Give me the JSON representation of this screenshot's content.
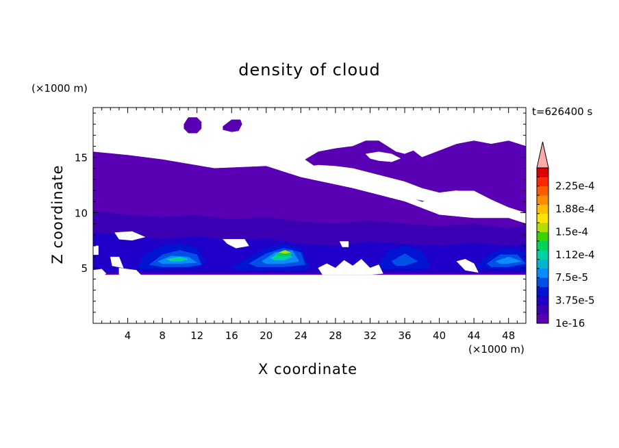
{
  "chart_data": {
    "type": "heatmap",
    "title": "density of cloud",
    "xlabel": "X coordinate",
    "ylabel": "Z coordinate",
    "x_multiplier": "(×1000 m)",
    "y_multiplier": "(×1000 m)",
    "time_label": "t=626400 s",
    "xlim": [
      0,
      50
    ],
    "ylim": [
      0,
      19.5
    ],
    "x_ticks": [
      4,
      8,
      12,
      16,
      20,
      24,
      28,
      32,
      36,
      40,
      44,
      48
    ],
    "y_ticks": [
      5,
      10,
      15
    ],
    "colorbar": {
      "labels": [
        "1e-16",
        "3.75e-5",
        "7.5e-5",
        "1.12e-4",
        "1.5e-4",
        "1.88e-4",
        "2.25e-4"
      ],
      "colors": [
        "#5a00b4",
        "#3c00b4",
        "#1e00c8",
        "#0014d2",
        "#0050e6",
        "#0a8cff",
        "#00b4d2",
        "#00d2a0",
        "#00d25a",
        "#3cd200",
        "#b4dc00",
        "#ffe600",
        "#ffbe00",
        "#ff8c00",
        "#ff5a00",
        "#ff2800",
        "#dc0000"
      ],
      "overflow_color": "#ffaaaa"
    },
    "layers": [
      {
        "level": "1e-16",
        "color": "#5a00b4",
        "regions": [
          {
            "x": [
              0,
              4,
              8,
              14,
              20,
              24,
              30,
              36,
              40,
              44,
              44,
              48,
              50,
              50,
              48,
              44,
              40,
              36,
              32,
              28,
              24,
              20,
              16,
              12,
              8,
              4,
              0
            ],
            "z": [
              15.5,
              15.2,
              14.8,
              14.0,
              14.2,
              13.2,
              12.2,
              11.0,
              9.8,
              9.5,
              9.5,
              9.5,
              9.0,
              4.4,
              4.4,
              4.4,
              4.4,
              4.4,
              4.4,
              4.4,
              4.4,
              4.4,
              4.4,
              4.4,
              4.4,
              4.4,
              4.4
            ]
          },
          {
            "x": [
              24.5,
              26,
              28,
              30,
              31.5,
              33,
              35,
              36,
              37,
              38,
              40,
              42,
              44,
              46,
              48,
              50,
              50,
              48,
              46,
              44,
              42,
              40,
              38,
              36,
              34,
              32,
              30,
              28,
              26,
              24.5
            ],
            "z": [
              14.8,
              15.5,
              15.8,
              16.0,
              16.5,
              16.5,
              15.5,
              15.3,
              15.6,
              15.0,
              15.6,
              16.2,
              16.5,
              16.2,
              16.5,
              16.0,
              10.0,
              10.5,
              11.2,
              12.0,
              12.0,
              11.4,
              11.0,
              11.6,
              12.4,
              13.0,
              13.6,
              13.6,
              14.0,
              14.8
            ]
          },
          {
            "x": [
              10.5,
              11,
              12,
              12.5,
              12.5,
              12,
              11,
              10.5
            ],
            "z": [
              18.0,
              18.6,
              18.6,
              18.2,
              17.6,
              17.2,
              17.2,
              17.6
            ]
          },
          {
            "x": [
              15,
              16,
              17,
              17.2,
              16.8,
              16,
              15
            ],
            "z": [
              17.8,
              18.4,
              18.4,
              18.0,
              17.4,
              17.3,
              17.5
            ]
          }
        ]
      },
      {
        "level": "1.875e-5",
        "color": "#3c00b4",
        "regions": [
          {
            "x": [
              0,
              4,
              8,
              12,
              16,
              20,
              24,
              28,
              32,
              36,
              40,
              44,
              48,
              50,
              50,
              48,
              44,
              40,
              36,
              32,
              28,
              24,
              20,
              16,
              12,
              8,
              4,
              0
            ],
            "z": [
              10.2,
              9.8,
              9.6,
              9.8,
              9.4,
              9.6,
              9.2,
              9.0,
              9.3,
              9.0,
              8.8,
              9.0,
              8.6,
              8.8,
              4.5,
              4.5,
              4.5,
              4.5,
              4.5,
              4.5,
              4.5,
              4.5,
              4.5,
              4.5,
              4.5,
              4.5,
              4.5,
              4.5
            ]
          }
        ]
      },
      {
        "level": "3.75e-5",
        "color": "#1e00c8",
        "regions": [
          {
            "x": [
              0,
              4,
              8,
              12,
              16,
              20,
              24,
              28,
              32,
              36,
              40,
              44,
              48,
              50,
              50,
              48,
              44,
              40,
              36,
              32,
              28,
              24,
              20,
              16,
              12,
              8,
              4,
              0
            ],
            "z": [
              8.2,
              7.9,
              7.6,
              7.9,
              7.4,
              7.7,
              7.2,
              7.0,
              7.4,
              7.2,
              7.0,
              7.3,
              7.0,
              7.2,
              4.6,
              4.6,
              4.6,
              4.6,
              4.6,
              4.6,
              4.6,
              4.6,
              4.6,
              4.6,
              4.6,
              4.6,
              4.6,
              4.6
            ]
          }
        ]
      },
      {
        "level": "5.62e-5",
        "color": "#0014d2",
        "regions": [
          {
            "x": [
              5,
              6,
              8,
              10,
              12,
              13,
              12,
              8,
              6
            ],
            "z": [
              5.0,
              6.2,
              7.0,
              7.2,
              6.8,
              5.5,
              5.0,
              4.9,
              4.9
            ]
          },
          {
            "x": [
              16,
              18,
              20,
              22,
              24,
              25,
              24,
              20,
              17
            ],
            "z": [
              5.0,
              6.0,
              6.8,
              7.2,
              6.8,
              5.0,
              4.8,
              4.8,
              4.8
            ]
          },
          {
            "x": [
              33,
              34,
              36,
              38,
              39,
              38,
              36,
              33
            ],
            "z": [
              5.2,
              6.5,
              7.0,
              6.5,
              5.2,
              4.9,
              4.9,
              4.9
            ]
          },
          {
            "x": [
              44,
              46,
              48,
              50,
              50,
              46
            ],
            "z": [
              5.0,
              6.4,
              6.8,
              6.4,
              4.9,
              4.9
            ]
          }
        ]
      },
      {
        "level": "7.5e-5",
        "color": "#0050e6",
        "regions": [
          {
            "x": [
              6.5,
              8,
              10,
              12,
              12.5,
              11,
              8
            ],
            "z": [
              5.3,
              6.2,
              6.6,
              6.2,
              5.3,
              5.1,
              5.1
            ]
          },
          {
            "x": [
              18,
              20,
              22,
              24,
              24.5,
              22,
              19
            ],
            "z": [
              5.4,
              6.3,
              6.8,
              6.4,
              5.3,
              5.1,
              5.1
            ]
          },
          {
            "x": [
              34.5,
              36,
              37.5,
              36,
              35
            ],
            "z": [
              5.6,
              6.3,
              5.6,
              5.2,
              5.2
            ]
          },
          {
            "x": [
              45.5,
              47,
              49,
              50,
              48,
              46
            ],
            "z": [
              5.4,
              6.2,
              6.2,
              5.4,
              5.1,
              5.1
            ]
          }
        ]
      },
      {
        "level": "9.37e-5",
        "color": "#0a8cff",
        "regions": [
          {
            "x": [
              7.5,
              9,
              11,
              12,
              10,
              8
            ],
            "z": [
              5.6,
              6.1,
              6.0,
              5.5,
              5.4,
              5.4
            ]
          },
          {
            "x": [
              19.5,
              21,
              23,
              23.8,
              22,
              20
            ],
            "z": [
              5.6,
              6.4,
              6.6,
              5.6,
              5.4,
              5.4
            ]
          },
          {
            "x": [
              46.5,
              48,
              49.5,
              48,
              47
            ],
            "z": [
              5.6,
              6.0,
              5.6,
              5.4,
              5.4
            ]
          }
        ]
      },
      {
        "level": "1.12e-4",
        "color": "#00d2a0",
        "regions": [
          {
            "x": [
              8.5,
              10,
              11,
              10,
              9
            ],
            "z": [
              5.8,
              6.0,
              5.8,
              5.6,
              5.6
            ]
          },
          {
            "x": [
              20.5,
              22,
              23,
              22,
              21
            ],
            "z": [
              5.9,
              6.5,
              6.0,
              5.7,
              5.7
            ]
          }
        ]
      },
      {
        "level": "1.31e-4",
        "color": "#00d25a",
        "regions": [
          {
            "x": [
              21,
              22,
              23,
              22.5,
              21.5
            ],
            "z": [
              6.2,
              6.6,
              6.3,
              6.1,
              6.1
            ]
          }
        ]
      },
      {
        "level": "1.5e-4",
        "color": "#b4dc00",
        "regions": [
          {
            "x": [
              21.5,
              22.2,
              22.8,
              22.2
            ],
            "z": [
              6.4,
              6.6,
              6.4,
              6.3
            ]
          }
        ]
      }
    ],
    "holes": [
      {
        "x": [
          24.5,
          26,
          30,
          33,
          36,
          40,
          42,
          45,
          46.5,
          46,
          44,
          42,
          40,
          38,
          36,
          32,
          30,
          28,
          26
        ],
        "z": [
          14.1,
          13.5,
          12.8,
          12.0,
          11.4,
          10.8,
          10.6,
          10.4,
          10.2,
          10.6,
          11.6,
          12.0,
          11.8,
          12.2,
          12.8,
          13.6,
          14.0,
          14.2,
          14.3
        ]
      },
      {
        "x": [
          31.5,
          33,
          34.5,
          35.5,
          34.5,
          33,
          32
        ],
        "z": [
          15.3,
          15.5,
          15.3,
          14.9,
          14.6,
          14.7,
          14.9
        ]
      },
      {
        "x": [
          2.5,
          4.5,
          6,
          4.5,
          3
        ],
        "z": [
          8.2,
          8.3,
          7.8,
          7.5,
          7.6
        ]
      },
      {
        "x": [
          15,
          17.5,
          18,
          16.5,
          15.5
        ],
        "z": [
          7.6,
          7.6,
          7.0,
          6.8,
          7.2
        ]
      },
      {
        "x": [
          28.5,
          29.5,
          29.5,
          28.8
        ],
        "z": [
          7.4,
          7.4,
          6.9,
          6.9
        ]
      },
      {
        "x": [
          0,
          0.6,
          0.6,
          0
        ],
        "z": [
          7.0,
          7.0,
          6.2,
          6.2
        ]
      },
      {
        "x": [
          2,
          3,
          3.5,
          2.2
        ],
        "z": [
          6.0,
          6.0,
          5.0,
          5.2
        ]
      },
      {
        "x": [
          26,
          27,
          28,
          29,
          30,
          31,
          32,
          33,
          33.5,
          32,
          30,
          28,
          26.5
        ],
        "z": [
          5.0,
          5.4,
          5.0,
          5.7,
          5.2,
          5.8,
          5.0,
          5.3,
          4.5,
          4.4,
          4.4,
          4.4,
          4.4
        ]
      },
      {
        "x": [
          42,
          43,
          44,
          44.5,
          43
        ],
        "z": [
          5.6,
          5.8,
          5.4,
          4.6,
          4.8
        ]
      },
      {
        "x": [
          0,
          1,
          1.5,
          1,
          0
        ],
        "z": [
          4.8,
          4.9,
          4.5,
          4.2,
          4.2
        ]
      },
      {
        "x": [
          3,
          5,
          5.5,
          4,
          3
        ],
        "z": [
          5.0,
          4.8,
          4.4,
          4.2,
          4.4
        ]
      }
    ]
  }
}
